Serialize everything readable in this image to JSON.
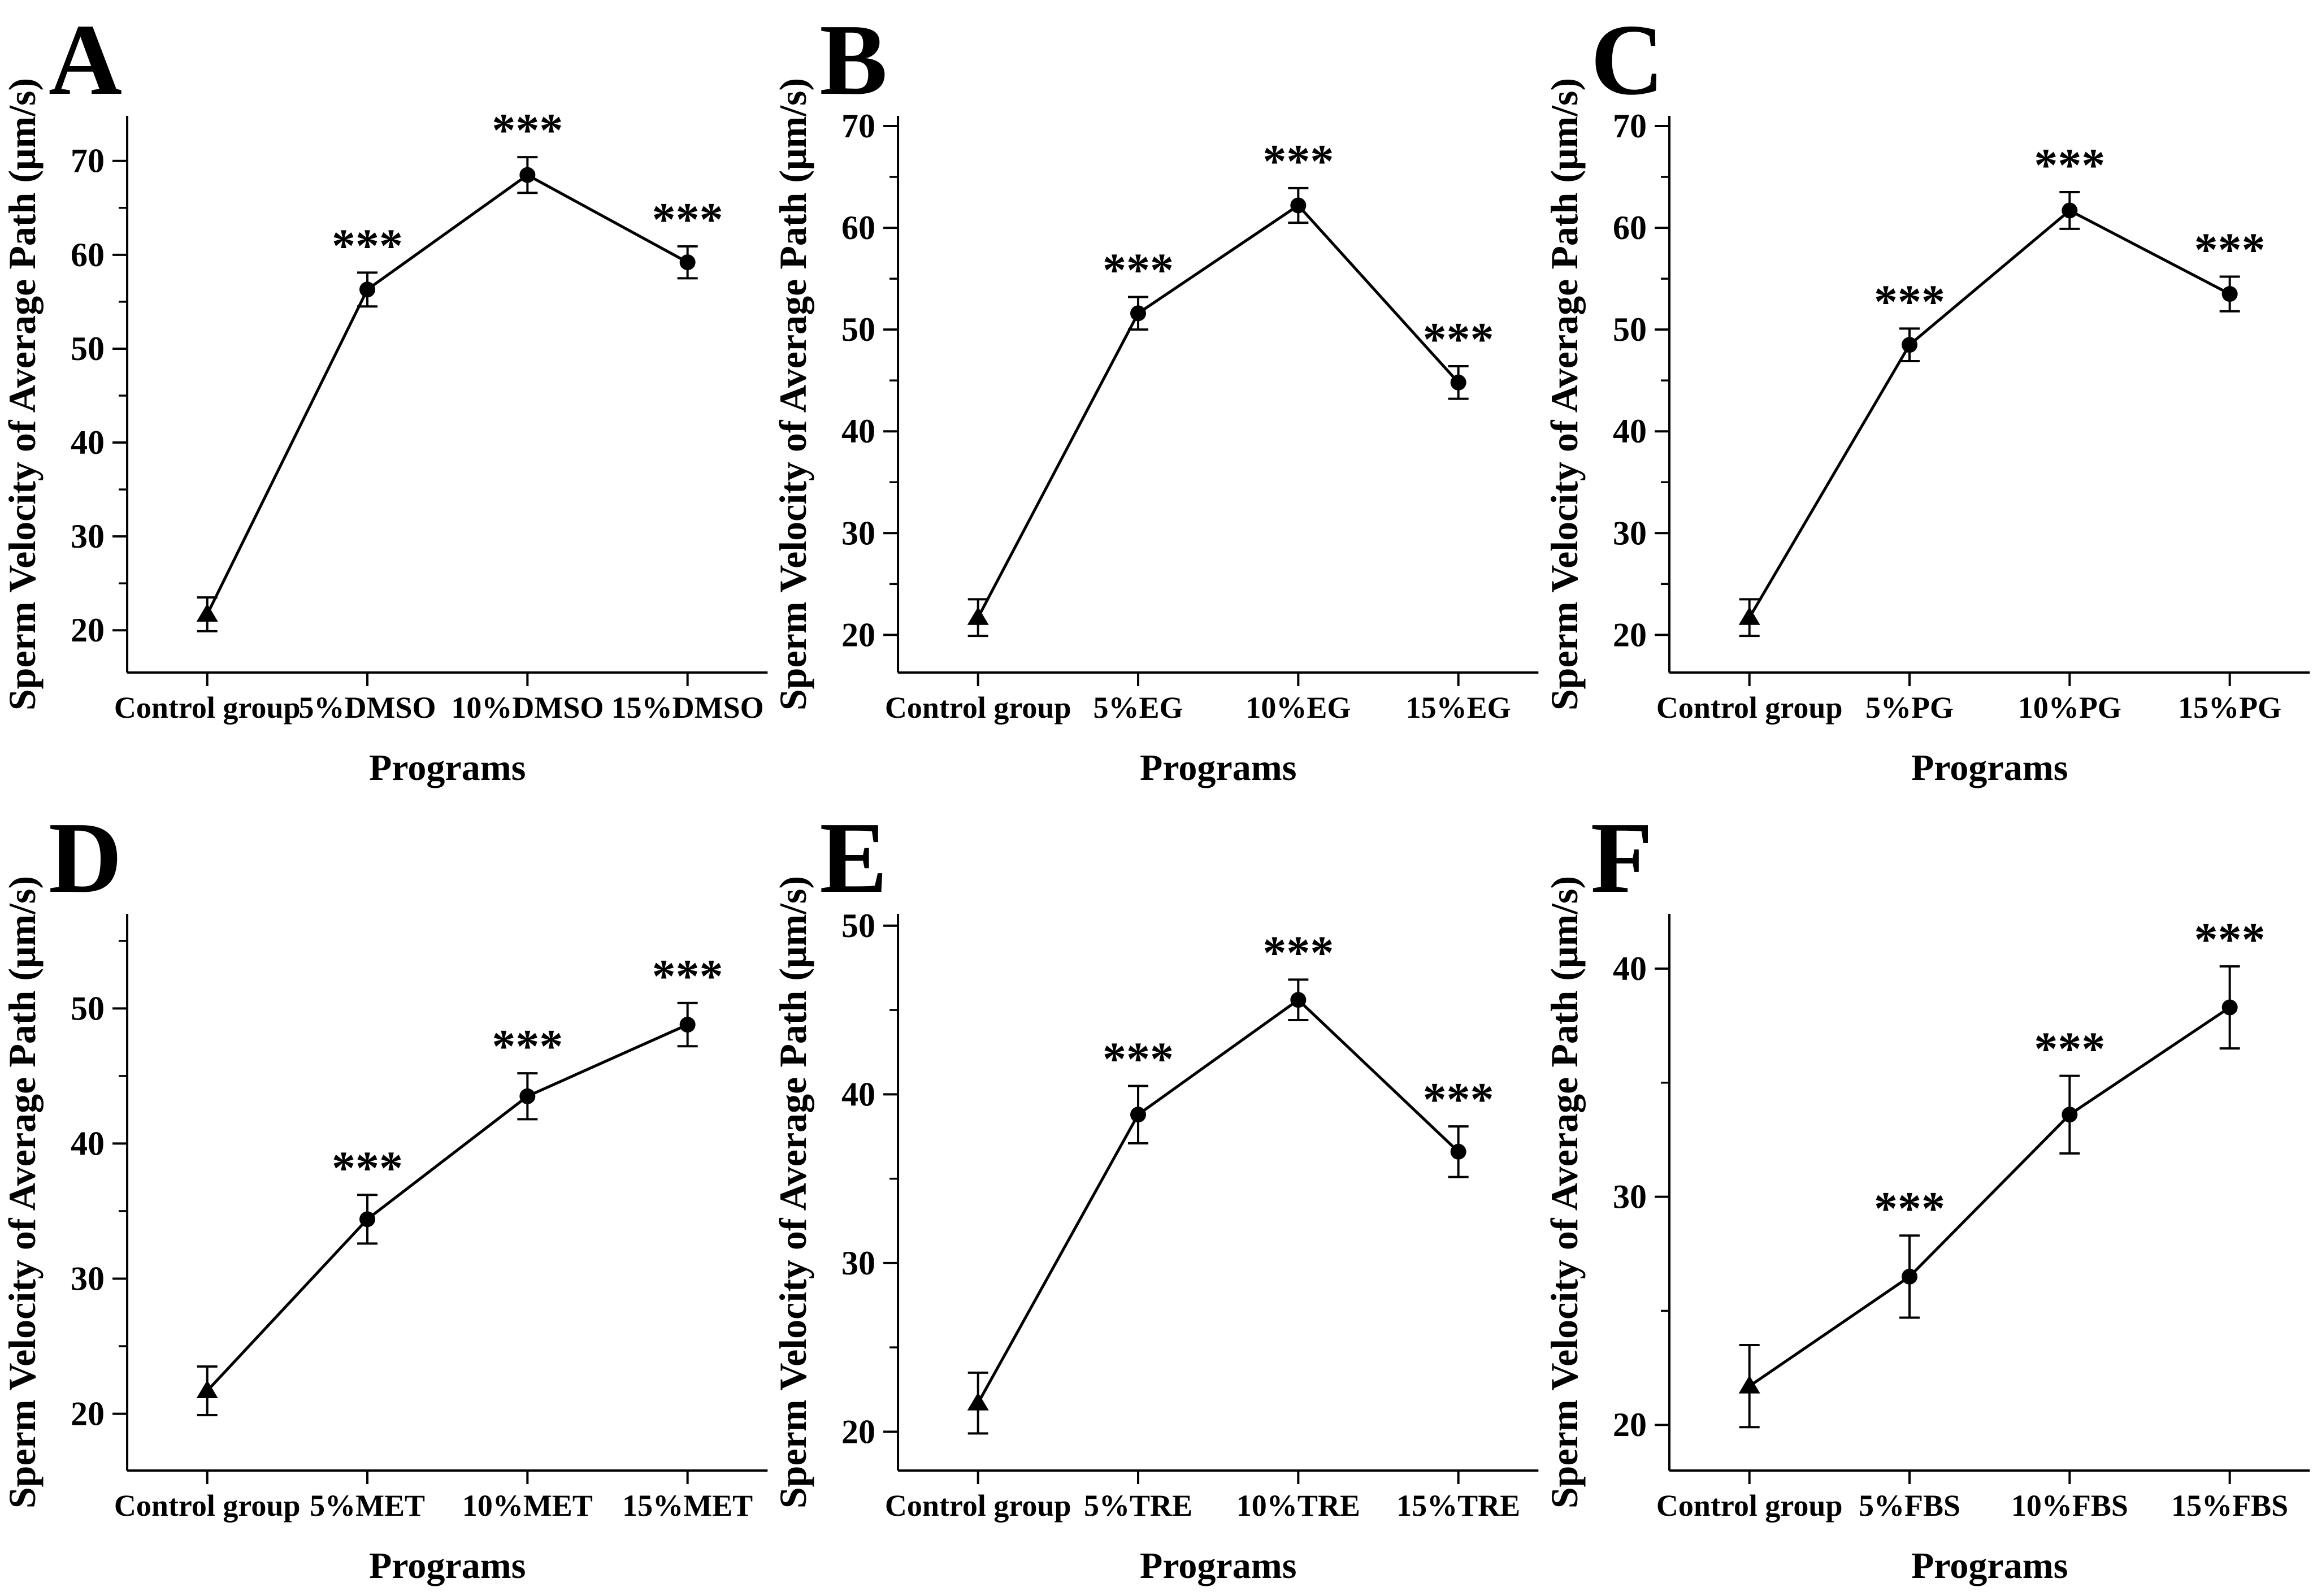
{
  "figure": {
    "background": "#ffffff",
    "ink": "#000000",
    "panel_labels": [
      "A",
      "B",
      "C",
      "D",
      "E",
      "F"
    ],
    "xlabel": "Programs",
    "ylabel": "Sperm Velocity of Average Path (μm/s)",
    "significance_marker": "***"
  },
  "chart_data": [
    {
      "panel": "A",
      "type": "line",
      "categories": [
        "Control group",
        "5%DMSO",
        "10%DMSO",
        "15%DMSO"
      ],
      "values": [
        21.7,
        56.3,
        68.5,
        59.2
      ],
      "errors": [
        1.8,
        1.8,
        1.9,
        1.7
      ],
      "significance": [
        "",
        "***",
        "***",
        "***"
      ],
      "markers": [
        "triangle",
        "circle",
        "circle",
        "circle"
      ],
      "xlabel": "Programs",
      "ylabel": "Sperm Velocity of Average Path (μm/s)",
      "ylim": [
        15.5,
        74.8
      ],
      "yticks": [
        20,
        30,
        40,
        50,
        60,
        70
      ],
      "minor_tick_step": 5,
      "grid": false,
      "legend": "none",
      "line_color": "#000000"
    },
    {
      "panel": "B",
      "type": "line",
      "categories": [
        "Control group",
        "5%EG",
        "10%EG",
        "15%EG"
      ],
      "values": [
        21.7,
        51.6,
        62.2,
        44.8
      ],
      "errors": [
        1.8,
        1.6,
        1.7,
        1.6
      ],
      "significance": [
        "",
        "***",
        "***",
        "***"
      ],
      "markers": [
        "triangle",
        "circle",
        "circle",
        "circle"
      ],
      "xlabel": "Programs",
      "ylabel": "Sperm Velocity of Average Path (μm/s)",
      "ylim": [
        16.3,
        71.0
      ],
      "yticks": [
        20,
        30,
        40,
        50,
        60,
        70
      ],
      "minor_tick_step": 5,
      "grid": false,
      "legend": "none",
      "line_color": "#000000"
    },
    {
      "panel": "C",
      "type": "line",
      "categories": [
        "Control group",
        "5%PG",
        "10%PG",
        "15%PG"
      ],
      "values": [
        21.7,
        48.5,
        61.7,
        53.5
      ],
      "errors": [
        1.8,
        1.6,
        1.8,
        1.7
      ],
      "significance": [
        "",
        "***",
        "***",
        "***"
      ],
      "markers": [
        "triangle",
        "circle",
        "circle",
        "circle"
      ],
      "xlabel": "Programs",
      "ylabel": "Sperm Velocity of Average Path (μm/s)",
      "ylim": [
        16.3,
        71.0
      ],
      "yticks": [
        20,
        30,
        40,
        50,
        60,
        70
      ],
      "minor_tick_step": 5,
      "grid": false,
      "legend": "none",
      "line_color": "#000000"
    },
    {
      "panel": "D",
      "type": "line",
      "categories": [
        "Control group",
        "5%MET",
        "10%MET",
        "15%MET"
      ],
      "values": [
        21.7,
        34.4,
        43.5,
        48.8
      ],
      "errors": [
        1.8,
        1.8,
        1.7,
        1.6
      ],
      "significance": [
        "",
        "***",
        "***",
        "***"
      ],
      "markers": [
        "triangle",
        "circle",
        "circle",
        "circle"
      ],
      "xlabel": "Programs",
      "ylabel": "Sperm Velocity of Average Path (μm/s)",
      "ylim": [
        15.8,
        57.0
      ],
      "yticks": [
        20,
        30,
        40,
        50
      ],
      "minor_tick_step": 5,
      "grid": false,
      "legend": "none",
      "line_color": "#000000"
    },
    {
      "panel": "E",
      "type": "line",
      "categories": [
        "Control group",
        "5%TRE",
        "10%TRE",
        "15%TRE"
      ],
      "values": [
        21.7,
        38.8,
        45.6,
        36.6
      ],
      "errors": [
        1.8,
        1.7,
        1.2,
        1.5
      ],
      "significance": [
        "",
        "***",
        "***",
        "***"
      ],
      "markers": [
        "triangle",
        "circle",
        "circle",
        "circle"
      ],
      "xlabel": "Programs",
      "ylabel": "Sperm Velocity of Average Path (μm/s)",
      "ylim": [
        17.7,
        50.7
      ],
      "yticks": [
        20,
        30,
        40,
        50
      ],
      "minor_tick_step": 5,
      "grid": false,
      "legend": "none",
      "line_color": "#000000"
    },
    {
      "panel": "F",
      "type": "line",
      "categories": [
        "Control group",
        "5%FBS",
        "10%FBS",
        "15%FBS"
      ],
      "values": [
        21.7,
        26.5,
        33.6,
        38.3
      ],
      "errors": [
        1.8,
        1.8,
        1.7,
        1.8
      ],
      "significance": [
        "",
        "***",
        "***",
        "***"
      ],
      "markers": [
        "triangle",
        "circle",
        "circle",
        "circle"
      ],
      "xlabel": "Programs",
      "ylabel": "Sperm Velocity of Average Path (μm/s)",
      "ylim": [
        18.0,
        42.4
      ],
      "yticks": [
        20,
        30,
        40
      ],
      "minor_tick_step": 5,
      "grid": false,
      "legend": "none",
      "line_color": "#000000"
    }
  ]
}
